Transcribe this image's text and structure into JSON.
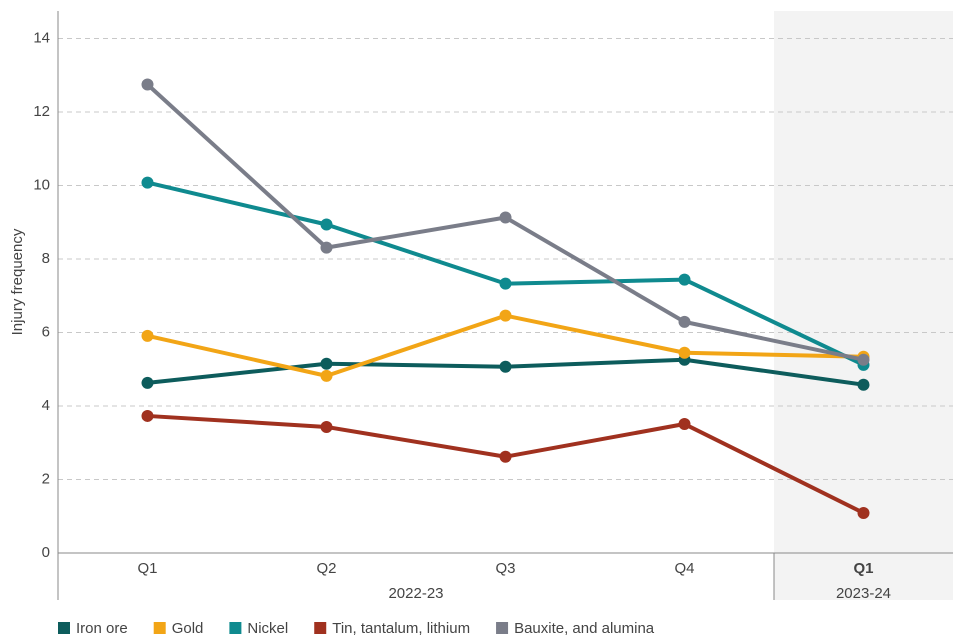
{
  "chart_data": {
    "type": "line",
    "y_label": "Injury frequency",
    "categories": [
      "Q1",
      "Q2",
      "Q3",
      "Q4",
      "Q1"
    ],
    "x_groups": [
      {
        "label": "2022-23",
        "count": 4
      },
      {
        "label": "2023-24",
        "count": 1
      }
    ],
    "highlight_group": 1,
    "series": [
      {
        "name": "Iron ore",
        "color": "#0d5c5c",
        "values": [
          4.63,
          5.15,
          5.07,
          5.26,
          4.58
        ]
      },
      {
        "name": "Gold",
        "color": "#f2a516",
        "values": [
          5.91,
          4.82,
          6.46,
          5.45,
          5.34
        ]
      },
      {
        "name": "Nickel",
        "color": "#0f8a8f",
        "values": [
          10.08,
          8.94,
          7.33,
          7.44,
          5.12
        ]
      },
      {
        "name": "Tin, tantalum, lithium",
        "color": "#a0311f",
        "values": [
          3.73,
          3.43,
          2.62,
          3.51,
          1.09
        ]
      },
      {
        "name": "Bauxite, and alumina",
        "color": "#7a7d89",
        "values": [
          12.75,
          8.31,
          9.13,
          6.29,
          5.26
        ]
      }
    ],
    "ylim": [
      0,
      14.75
    ],
    "yticks": [
      0,
      2,
      4,
      6,
      8,
      10,
      12,
      14
    ],
    "grid": true,
    "legend": "bottom"
  }
}
